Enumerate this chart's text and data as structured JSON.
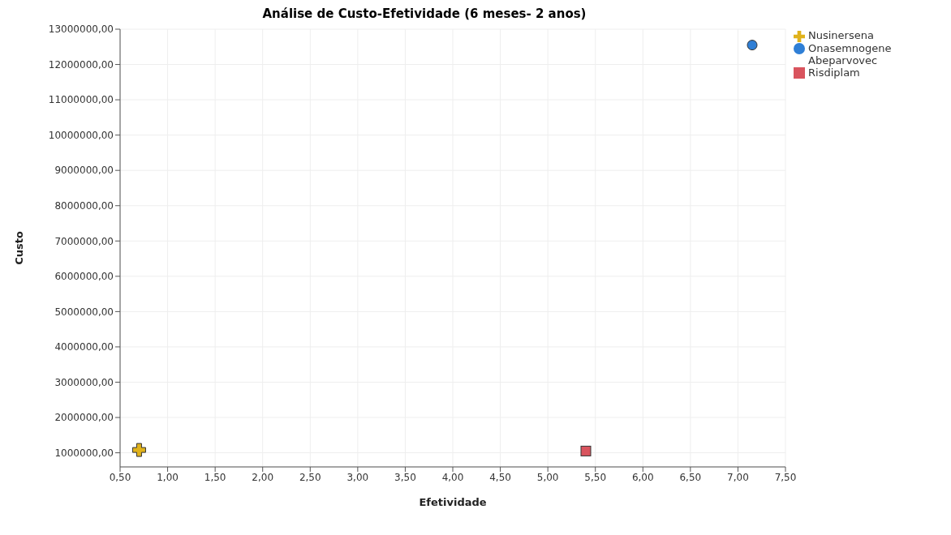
{
  "chart_data": {
    "type": "scatter",
    "title": "Análise de Custo-Efetividade (6 meses- 2 anos)",
    "xlabel": "Efetividade",
    "ylabel": "Custo",
    "series": [
      {
        "name": "Onasemnogene Abeparvovec",
        "color": "#2f7fd6",
        "marker": "circle",
        "x": [
          7.15
        ],
        "values": [
          12550000
        ]
      },
      {
        "name": "Risdiplam",
        "color": "#d9545e",
        "marker": "square",
        "x": [
          5.4
        ],
        "values": [
          1050000
        ]
      },
      {
        "name": "Nusinersena",
        "color": "#e0b21c",
        "marker": "cross",
        "x": [
          0.7
        ],
        "values": [
          1080000
        ]
      }
    ],
    "xlim": [
      0.5,
      7.5
    ],
    "xticks": [
      {
        "value": 0.5,
        "label": "0,50"
      },
      {
        "value": 1,
        "label": "1,00"
      },
      {
        "value": 1.5,
        "label": "1,50"
      },
      {
        "value": 2,
        "label": "2,00"
      },
      {
        "value": 2.5,
        "label": "2,50"
      },
      {
        "value": 3,
        "label": "3,00"
      },
      {
        "value": 3.5,
        "label": "3,50"
      },
      {
        "value": 4,
        "label": "4,00"
      },
      {
        "value": 4.5,
        "label": "4,50"
      },
      {
        "value": 5,
        "label": "5,00"
      },
      {
        "value": 5.5,
        "label": "5,50"
      },
      {
        "value": 6,
        "label": "6,00"
      },
      {
        "value": 6.5,
        "label": "6,50"
      },
      {
        "value": 7,
        "label": "7,00"
      },
      {
        "value": 7.5,
        "label": "7,50"
      }
    ],
    "ylim": [
      600000,
      13000000
    ],
    "yticks": [
      {
        "value": 1000000,
        "label": "1000000,00"
      },
      {
        "value": 2000000,
        "label": "2000000,00"
      },
      {
        "value": 3000000,
        "label": "3000000,00"
      },
      {
        "value": 4000000,
        "label": "4000000,00"
      },
      {
        "value": 5000000,
        "label": "5000000,00"
      },
      {
        "value": 6000000,
        "label": "6000000,00"
      },
      {
        "value": 7000000,
        "label": "7000000,00"
      },
      {
        "value": 8000000,
        "label": "8000000,00"
      },
      {
        "value": 9000000,
        "label": "9000000,00"
      },
      {
        "value": 10000000,
        "label": "10000000,00"
      },
      {
        "value": 11000000,
        "label": "11000000,00"
      },
      {
        "value": 12000000,
        "label": "12000000,00"
      },
      {
        "value": 13000000,
        "label": "13000000,00"
      }
    ],
    "grid": true,
    "legend": "top right"
  }
}
